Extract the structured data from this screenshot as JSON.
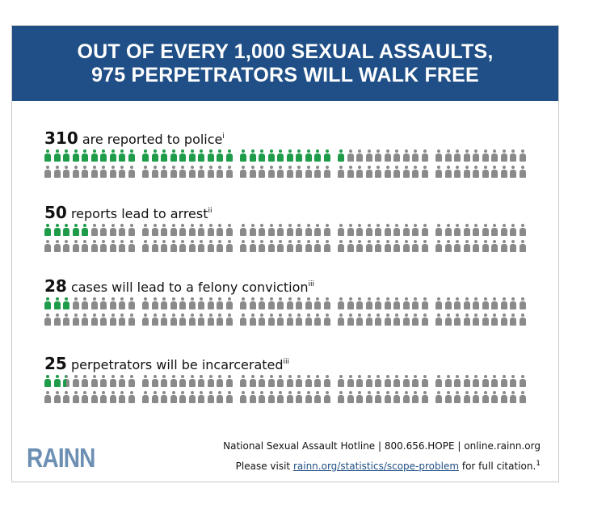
{
  "header": {
    "line1": "OUT OF EVERY 1,000 SEXUAL ASSAULTS,",
    "line2": "975 PERPETRATORS WILL WALK FREE"
  },
  "colors": {
    "banner": "#1f4f86",
    "highlight": "#1e9c4a",
    "base": "#8a8a8a",
    "logo": "#6c8fb3"
  },
  "icon": "person-icon",
  "total_per_row_group": 100,
  "stats": [
    {
      "number": "310",
      "text": "are reported to police",
      "note": "i",
      "count": 31
    },
    {
      "number": "50",
      "text": "reports lead to arrest",
      "note": "ii",
      "count": 5
    },
    {
      "number": "28",
      "text": "cases will lead to a felony conviction",
      "note": "iii",
      "count": 3
    },
    {
      "number": "25",
      "text": "perpetrators will be incarcerated",
      "note": "iii",
      "count": 2.5
    }
  ],
  "footer": {
    "logo": "RAINN",
    "hotline": "National Sexual Assault Hotline | 800.656.HOPE | online.rainn.org",
    "visit_prefix": "Please visit ",
    "link": "rainn.org/statistics/scope-problem",
    "visit_suffix": " for full citation.",
    "footnote": "1"
  }
}
